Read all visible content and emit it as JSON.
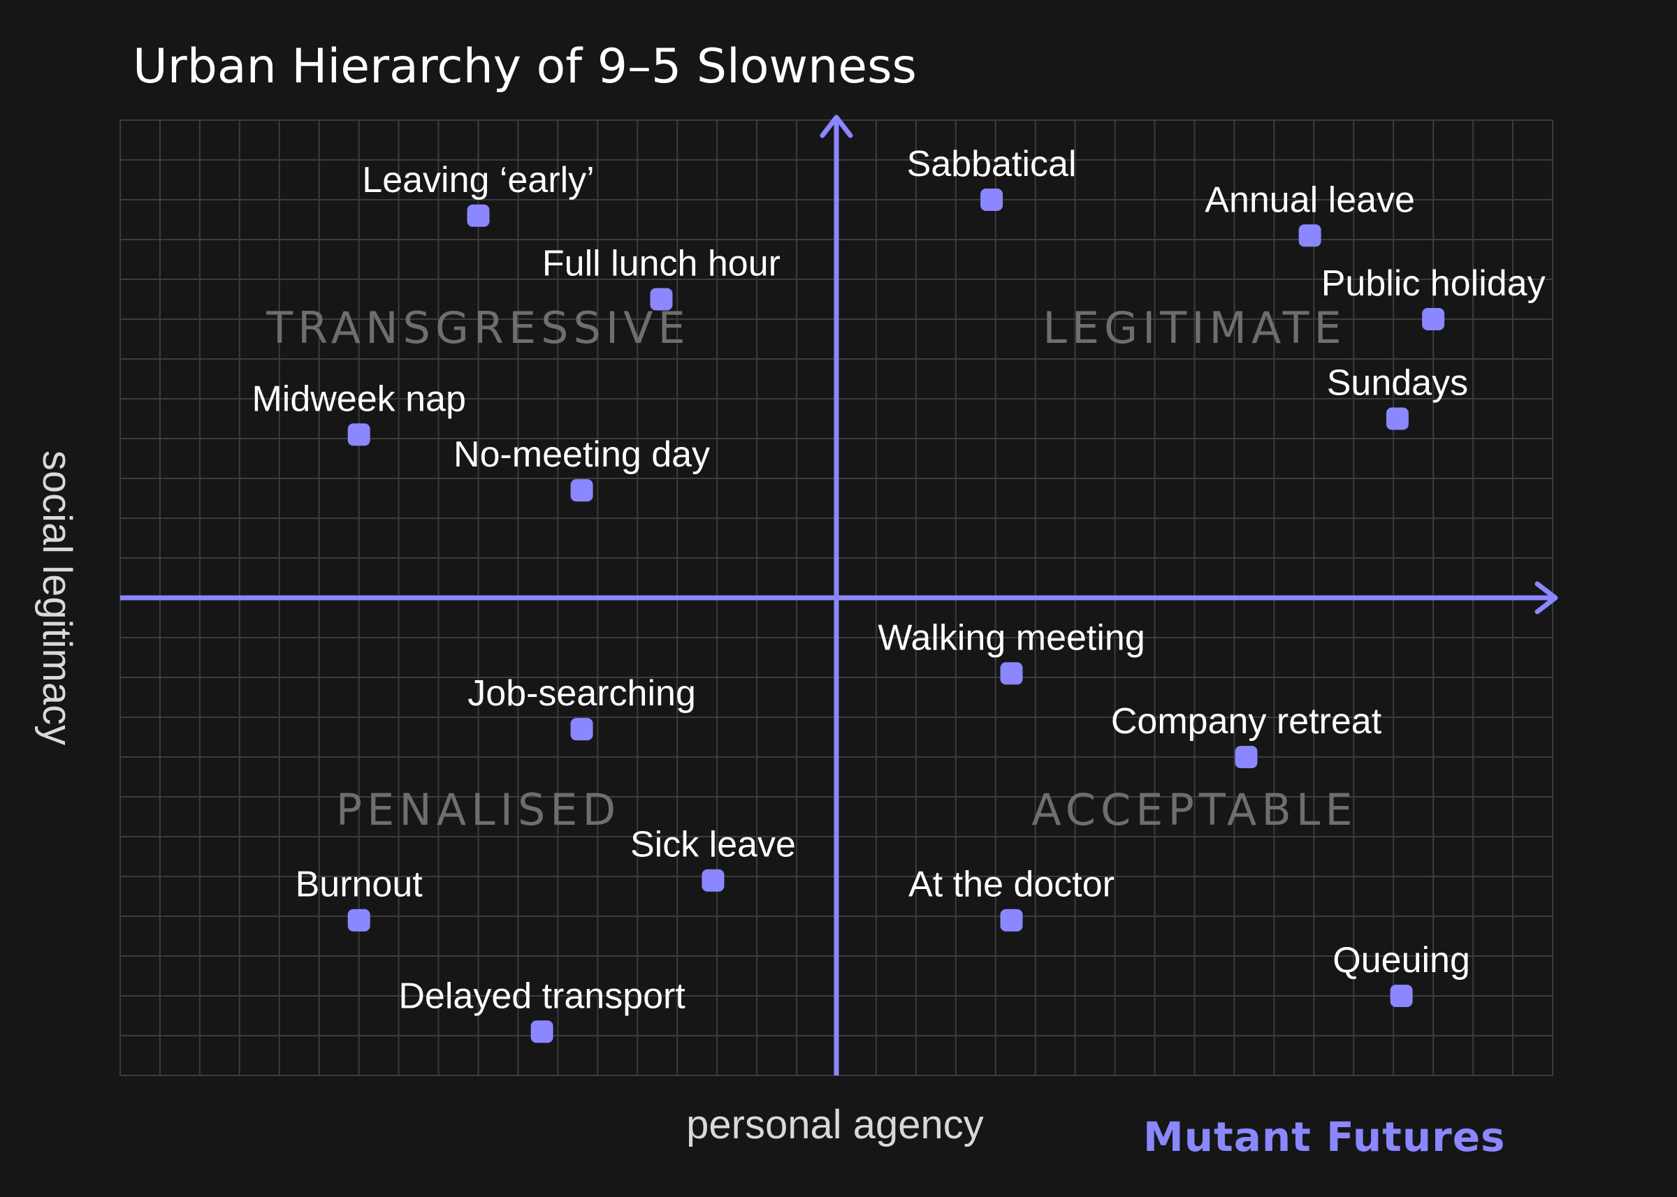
{
  "chart_data": {
    "type": "scatter",
    "title": "Urban Hierarchy of 9–5 Slowness",
    "xlabel": "personal agency",
    "ylabel": "social legitimacy",
    "xlim": [
      -18,
      18
    ],
    "ylim": [
      -12,
      12
    ],
    "grid": true,
    "quadrant_labels": [
      {
        "text": "TRANSGRESSIVE",
        "x": -9,
        "y": 6.4
      },
      {
        "text": "LEGITIMATE",
        "x": 9,
        "y": 6.4
      },
      {
        "text": "PENALISED",
        "x": -9,
        "y": -5.7
      },
      {
        "text": "ACCEPTABLE",
        "x": 9,
        "y": -5.7
      }
    ],
    "points": [
      {
        "label": "Leaving ‘early’",
        "x": -9,
        "y": 9.6
      },
      {
        "label": "Full lunch hour",
        "x": -4.4,
        "y": 7.5
      },
      {
        "label": "Midweek nap",
        "x": -12,
        "y": 4.1
      },
      {
        "label": "No-meeting day",
        "x": -6.4,
        "y": 2.7
      },
      {
        "label": "Sabbatical",
        "x": 3.9,
        "y": 10
      },
      {
        "label": "Annual leave",
        "x": 11.9,
        "y": 9.1
      },
      {
        "label": "Public holiday",
        "x": 15,
        "y": 7
      },
      {
        "label": "Sundays",
        "x": 14.1,
        "y": 4.5
      },
      {
        "label": "Job-searching",
        "x": -6.4,
        "y": -3.3
      },
      {
        "label": "Sick leave",
        "x": -3.1,
        "y": -7.1
      },
      {
        "label": "Burnout",
        "x": -12,
        "y": -8.1
      },
      {
        "label": "Delayed transport",
        "x": -7.4,
        "y": -10.9
      },
      {
        "label": "Walking meeting",
        "x": 4.4,
        "y": -1.9
      },
      {
        "label": "Company retreat",
        "x": 10.3,
        "y": -4
      },
      {
        "label": "At the doctor",
        "x": 4.4,
        "y": -8.1
      },
      {
        "label": "Queuing",
        "x": 14.2,
        "y": -10
      }
    ]
  },
  "brand": "Mutant Futures",
  "colors": {
    "background": "#161616",
    "grid": "#3c3c3c",
    "accent": "#8b87ff",
    "text": "#ffffff",
    "quadrant_text": "#6e6e6e"
  }
}
